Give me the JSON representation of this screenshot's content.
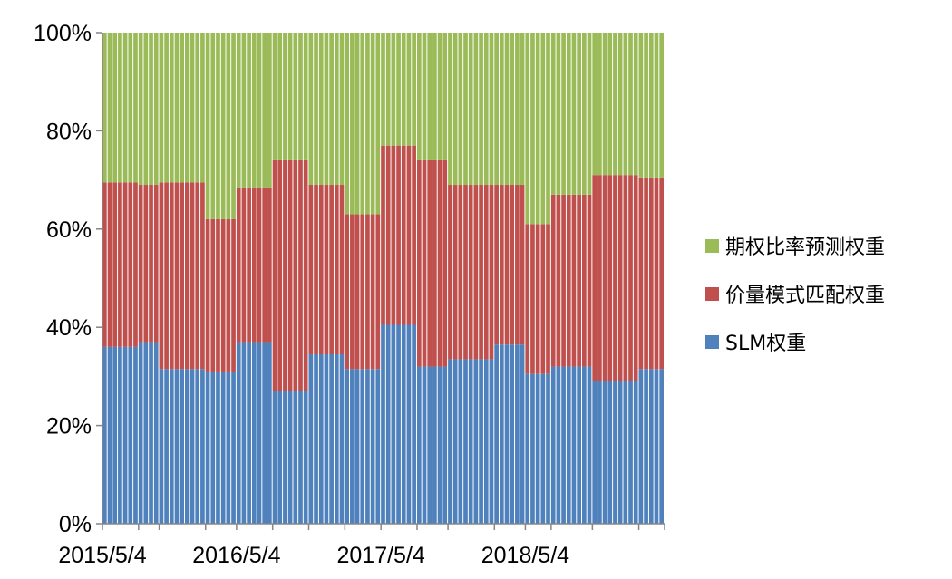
{
  "chart_data": {
    "type": "bar",
    "stacked": true,
    "percent": true,
    "x_tick_labels": [
      "2015/5/4",
      "2016/5/4",
      "2017/5/4",
      "2018/5/4"
    ],
    "y_tick_labels": [
      "0%",
      "20%",
      "40%",
      "60%",
      "80%",
      "100%"
    ],
    "ylim": [
      0,
      100
    ],
    "grid": false,
    "legend_position": "right",
    "legend_order": [
      "期权比率预测权重",
      "价量模式匹配权重",
      "SLM权重"
    ],
    "period_values": {
      "SLM权重": [
        36,
        37,
        31.5,
        31,
        37,
        27,
        34.5,
        31.5,
        40.5,
        32,
        33.5,
        36.5,
        30.5,
        32,
        29,
        31.5
      ],
      "价量模式匹配权重": [
        33.5,
        32,
        38,
        31,
        31.5,
        47,
        34.5,
        31.5,
        36.5,
        42,
        35.5,
        32.5,
        30.5,
        35,
        42,
        39
      ],
      "期权比率预测权重": [
        30.5,
        31,
        30.5,
        38,
        31.5,
        26,
        31,
        37,
        23,
        26,
        31,
        31,
        39,
        33,
        29,
        29.5
      ]
    },
    "period_bar_counts": [
      7,
      4,
      9,
      6,
      7,
      7,
      7,
      7,
      7,
      6,
      9,
      6,
      5,
      8,
      9,
      5
    ],
    "series": [
      {
        "name": "SLM权重",
        "color": "#4f81bd"
      },
      {
        "name": "价量模式匹配权重",
        "color": "#c0504d"
      },
      {
        "name": "期权比率预测权重",
        "color": "#9bbb59"
      }
    ]
  }
}
